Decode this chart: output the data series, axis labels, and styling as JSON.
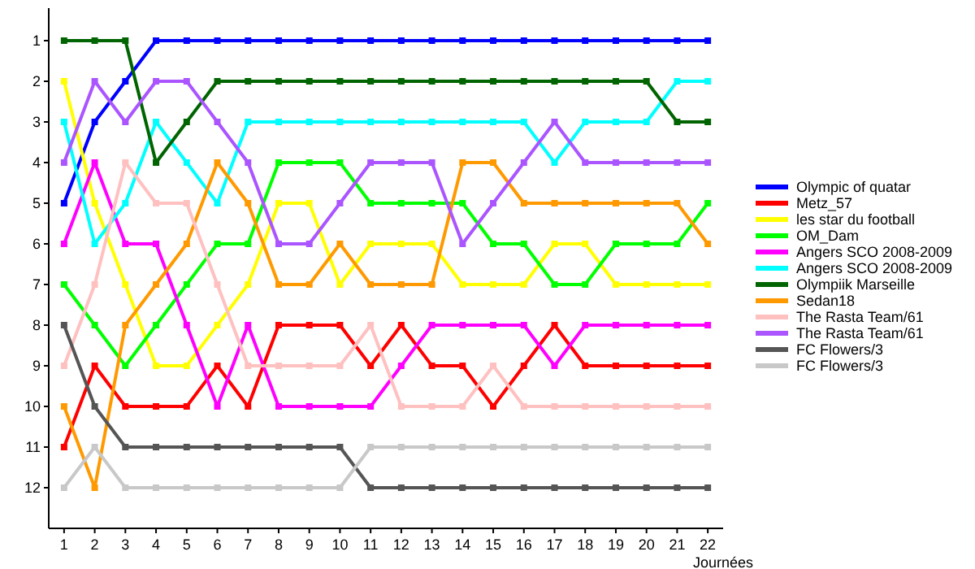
{
  "chart_data": {
    "type": "line",
    "xlabel": "Journées",
    "x": [
      1,
      2,
      3,
      4,
      5,
      6,
      7,
      8,
      9,
      10,
      11,
      12,
      13,
      14,
      15,
      16,
      17,
      18,
      19,
      20,
      21,
      22
    ],
    "xlim": [
      0.5,
      22.5
    ],
    "xticks": [
      1,
      2,
      3,
      4,
      5,
      6,
      7,
      8,
      9,
      10,
      11,
      12,
      13,
      14,
      15,
      16,
      17,
      18,
      19,
      20,
      21,
      22
    ],
    "ylim": [
      13,
      0.2
    ],
    "yticks": [
      1,
      2,
      3,
      4,
      5,
      6,
      7,
      8,
      9,
      10,
      11,
      12
    ],
    "grid": false,
    "legend": "right",
    "marker": "square",
    "line_style": "solid",
    "series": [
      {
        "name": "Olympic of quatar",
        "color": "#0000ff",
        "values": [
          5,
          3,
          2,
          1,
          1,
          1,
          1,
          1,
          1,
          1,
          1,
          1,
          1,
          1,
          1,
          1,
          1,
          1,
          1,
          1,
          1,
          1
        ]
      },
      {
        "name": "Metz_57",
        "color": "#ff0000",
        "values": [
          11,
          9,
          10,
          10,
          10,
          9,
          10,
          8,
          8,
          8,
          9,
          8,
          9,
          9,
          10,
          9,
          8,
          9,
          9,
          9,
          9,
          9
        ]
      },
      {
        "name": "les star du football",
        "color": "#ffff00",
        "values": [
          2,
          5,
          7,
          9,
          9,
          8,
          7,
          5,
          5,
          7,
          6,
          6,
          6,
          7,
          7,
          7,
          6,
          6,
          7,
          7,
          7,
          7
        ]
      },
      {
        "name": "OM_Dam",
        "color": "#00ff00",
        "values": [
          7,
          8,
          9,
          8,
          7,
          6,
          6,
          4,
          4,
          4,
          5,
          5,
          5,
          5,
          6,
          6,
          7,
          7,
          6,
          6,
          6,
          5
        ]
      },
      {
        "name": "Angers SCO 2008-2009",
        "color": "#ff00ff",
        "values": [
          6,
          4,
          6,
          6,
          8,
          10,
          8,
          10,
          10,
          10,
          10,
          9,
          8,
          8,
          8,
          8,
          9,
          8,
          8,
          8,
          8,
          8
        ]
      },
      {
        "name": "Angers SCO 2008-2009",
        "color": "#00ffff",
        "values": [
          3,
          6,
          5,
          3,
          4,
          5,
          3,
          3,
          3,
          3,
          3,
          3,
          3,
          3,
          3,
          3,
          4,
          3,
          3,
          3,
          2,
          2
        ]
      },
      {
        "name": "Olympiik Marseille",
        "color": "#006400",
        "values": [
          1,
          1,
          1,
          4,
          3,
          2,
          2,
          2,
          2,
          2,
          2,
          2,
          2,
          2,
          2,
          2,
          2,
          2,
          2,
          2,
          3,
          3
        ]
      },
      {
        "name": "Sedan18",
        "color": "#ff9900",
        "values": [
          10,
          12,
          8,
          7,
          6,
          4,
          5,
          7,
          7,
          6,
          7,
          7,
          7,
          4,
          4,
          5,
          5,
          5,
          5,
          5,
          5,
          6
        ]
      },
      {
        "name": "The Rasta Team/61",
        "color": "#ffc0c0",
        "values": [
          9,
          7,
          4,
          5,
          5,
          7,
          9,
          9,
          9,
          9,
          8,
          10,
          10,
          10,
          9,
          10,
          10,
          10,
          10,
          10,
          10,
          10
        ]
      },
      {
        "name": "The Rasta Team/61",
        "color": "#aa55ff",
        "values": [
          4,
          2,
          3,
          2,
          2,
          3,
          4,
          6,
          6,
          5,
          4,
          4,
          4,
          6,
          5,
          4,
          3,
          4,
          4,
          4,
          4,
          4
        ]
      },
      {
        "name": "FC Flowers/3",
        "color": "#555555",
        "values": [
          8,
          10,
          11,
          11,
          11,
          11,
          11,
          11,
          11,
          11,
          12,
          12,
          12,
          12,
          12,
          12,
          12,
          12,
          12,
          12,
          12,
          12
        ]
      },
      {
        "name": "FC Flowers/3",
        "color": "#c8c8c8",
        "values": [
          12,
          11,
          12,
          12,
          12,
          12,
          12,
          12,
          12,
          12,
          11,
          11,
          11,
          11,
          11,
          11,
          11,
          11,
          11,
          11,
          11,
          11
        ]
      }
    ]
  }
}
